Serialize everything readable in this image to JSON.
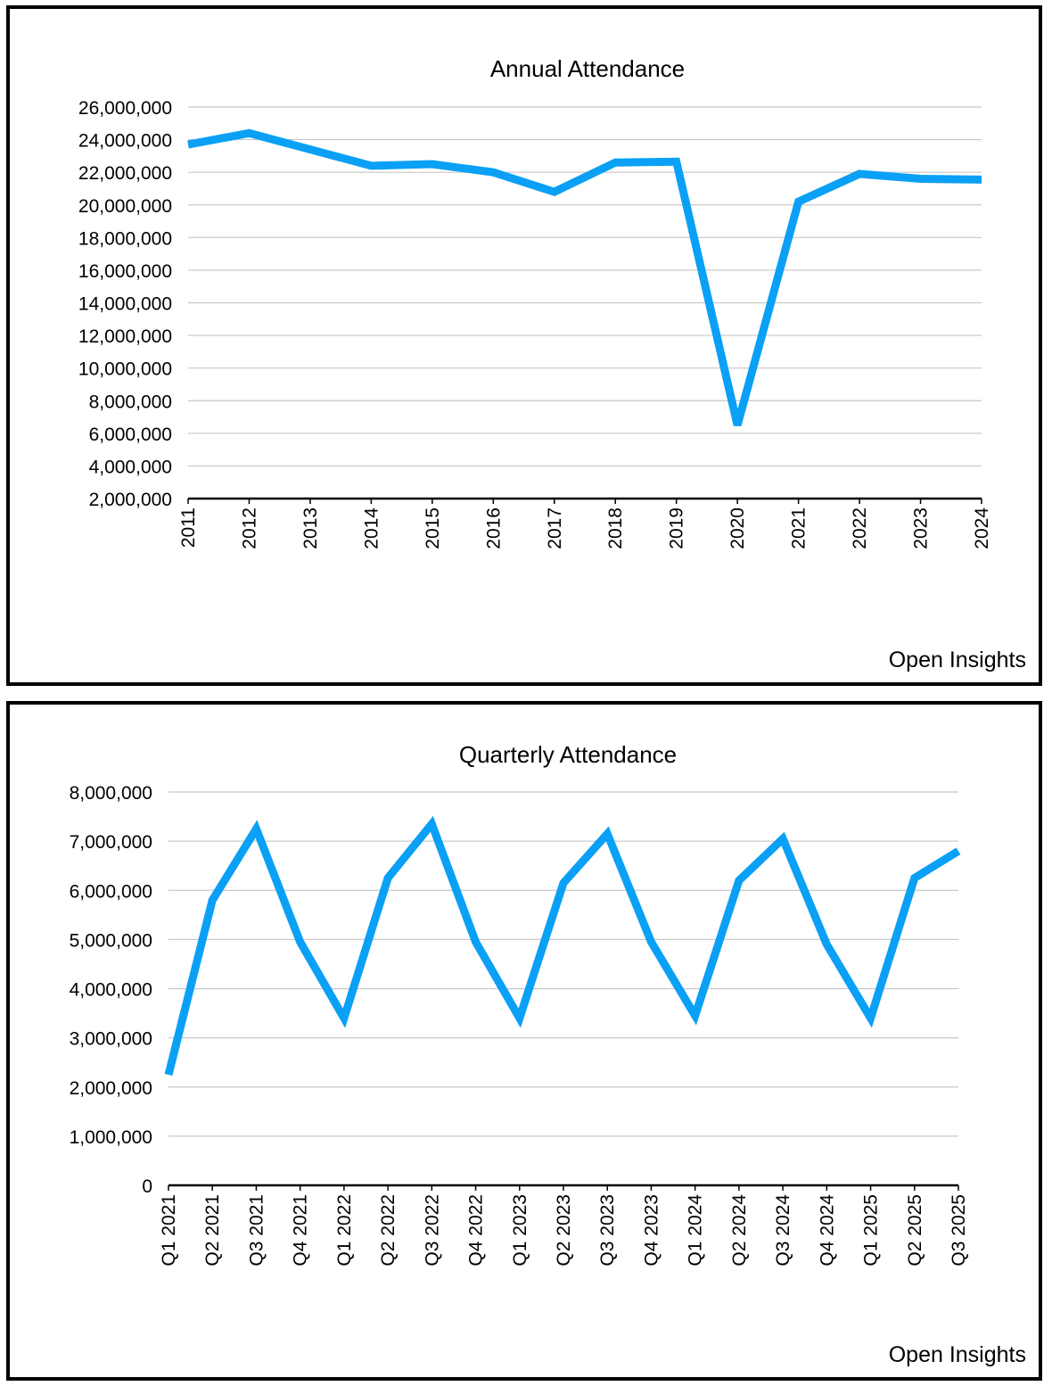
{
  "chart_data": [
    {
      "type": "line",
      "title": "Annual Attendance",
      "xlabel": "",
      "ylabel": "",
      "categories": [
        "2011",
        "2012",
        "2013",
        "2014",
        "2015",
        "2016",
        "2017",
        "2018",
        "2019",
        "2020",
        "2021",
        "2022",
        "2023",
        "2024"
      ],
      "series": [
        {
          "name": "Attendance",
          "color": "#0aa0f5",
          "values": [
            23700000,
            24400000,
            23400000,
            22400000,
            22500000,
            22000000,
            20800000,
            22600000,
            22650000,
            6500000,
            20200000,
            21900000,
            21600000,
            21550000
          ]
        }
      ],
      "ylim": [
        2000000,
        26000000
      ],
      "yticks": [
        2000000,
        4000000,
        6000000,
        8000000,
        10000000,
        12000000,
        14000000,
        16000000,
        18000000,
        20000000,
        22000000,
        24000000,
        26000000
      ],
      "ytick_labels": [
        "2,000,000",
        "4,000,000",
        "6,000,000",
        "8,000,000",
        "10,000,000",
        "12,000,000",
        "14,000,000",
        "16,000,000",
        "18,000,000",
        "20,000,000",
        "22,000,000",
        "24,000,000",
        "26,000,000"
      ],
      "grid": true,
      "source": "Open Insights"
    },
    {
      "type": "line",
      "title": "Quarterly Attendance",
      "xlabel": "",
      "ylabel": "",
      "categories": [
        "Q1 2021",
        "Q2 2021",
        "Q3 2021",
        "Q4 2021",
        "Q1 2022",
        "Q2 2022",
        "Q3 2022",
        "Q4 2022",
        "Q1 2023",
        "Q2 2023",
        "Q3 2023",
        "Q4 2023",
        "Q1 2024",
        "Q2 2024",
        "Q3 2024",
        "Q4 2024",
        "Q1 2025",
        "Q2 2025",
        "Q3 2025"
      ],
      "series": [
        {
          "name": "Attendance",
          "color": "#0aa0f5",
          "values": [
            2250000,
            5800000,
            7250000,
            4950000,
            3400000,
            6250000,
            7350000,
            4950000,
            3400000,
            6150000,
            7150000,
            4950000,
            3450000,
            6200000,
            7050000,
            4900000,
            3400000,
            6250000,
            6800000
          ]
        }
      ],
      "ylim": [
        0,
        8000000
      ],
      "yticks": [
        0,
        1000000,
        2000000,
        3000000,
        4000000,
        5000000,
        6000000,
        7000000,
        8000000
      ],
      "ytick_labels": [
        "0",
        "1,000,000",
        "2,000,000",
        "3,000,000",
        "4,000,000",
        "5,000,000",
        "6,000,000",
        "7,000,000",
        "8,000,000"
      ],
      "grid": true,
      "source": "Open Insights"
    }
  ]
}
